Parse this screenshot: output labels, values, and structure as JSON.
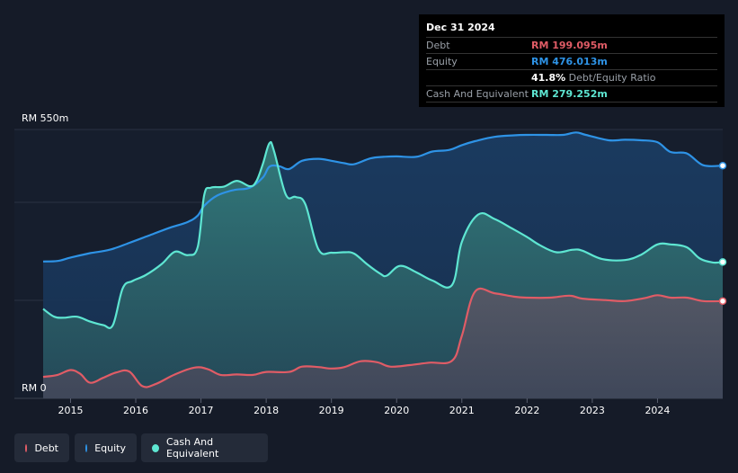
{
  "tooltip": {
    "date": "Dec 31 2024",
    "debt_label": "Debt",
    "debt_value": "RM 199.095m",
    "equity_label": "Equity",
    "equity_value": "RM 476.013m",
    "ratio_value": "41.8%",
    "ratio_label": "Debt/Equity Ratio",
    "cash_label": "Cash And Equivalent",
    "cash_value": "RM 279.252m"
  },
  "legend": {
    "debt": "Debt",
    "equity": "Equity",
    "cash": "Cash And Equivalent"
  },
  "colors": {
    "debt": "#e05c66",
    "equity": "#2e93e6",
    "cash": "#5ee6d2",
    "background": "#151b28"
  },
  "chart_data": {
    "type": "area",
    "ylabel_top": "RM 550m",
    "ylabel_bottom": "RM 0",
    "ylim": [
      0,
      550
    ],
    "xlim": [
      2014.58,
      2025.0
    ],
    "x_ticks": [
      {
        "value": 2015,
        "label": "2015"
      },
      {
        "value": 2016,
        "label": "2016"
      },
      {
        "value": 2017,
        "label": "2017"
      },
      {
        "value": 2018,
        "label": "2018"
      },
      {
        "value": 2019,
        "label": "2019"
      },
      {
        "value": 2020,
        "label": "2020"
      },
      {
        "value": 2021,
        "label": "2021"
      },
      {
        "value": 2022,
        "label": "2022"
      },
      {
        "value": 2023,
        "label": "2023"
      },
      {
        "value": 2024,
        "label": "2024"
      }
    ],
    "series": [
      {
        "name": "Equity",
        "points": [
          [
            2014.58,
            280
          ],
          [
            2014.8,
            281
          ],
          [
            2015.0,
            288
          ],
          [
            2015.3,
            297
          ],
          [
            2015.6,
            304
          ],
          [
            2015.9,
            318
          ],
          [
            2016.2,
            333
          ],
          [
            2016.5,
            348
          ],
          [
            2016.8,
            361
          ],
          [
            2016.95,
            374
          ],
          [
            2017.05,
            394
          ],
          [
            2017.25,
            415
          ],
          [
            2017.5,
            426
          ],
          [
            2017.75,
            431
          ],
          [
            2017.95,
            452
          ],
          [
            2018.05,
            474
          ],
          [
            2018.2,
            475
          ],
          [
            2018.35,
            469
          ],
          [
            2018.55,
            486
          ],
          [
            2018.8,
            490
          ],
          [
            2019.0,
            486
          ],
          [
            2019.2,
            481
          ],
          [
            2019.35,
            479
          ],
          [
            2019.6,
            491
          ],
          [
            2019.8,
            494
          ],
          [
            2020.0,
            495
          ],
          [
            2020.3,
            494
          ],
          [
            2020.55,
            505
          ],
          [
            2020.8,
            508
          ],
          [
            2021.0,
            518
          ],
          [
            2021.2,
            526
          ],
          [
            2021.5,
            535
          ],
          [
            2021.8,
            538
          ],
          [
            2022.0,
            539
          ],
          [
            2022.3,
            539
          ],
          [
            2022.55,
            539
          ],
          [
            2022.75,
            544
          ],
          [
            2022.9,
            539
          ],
          [
            2023.25,
            528
          ],
          [
            2023.5,
            529
          ],
          [
            2023.75,
            528
          ],
          [
            2024.0,
            524
          ],
          [
            2024.2,
            504
          ],
          [
            2024.45,
            501
          ],
          [
            2024.7,
            477
          ],
          [
            2025.0,
            476
          ]
        ]
      },
      {
        "name": "Cash And Equivalent",
        "points": [
          [
            2014.58,
            183
          ],
          [
            2014.75,
            167
          ],
          [
            2014.9,
            165
          ],
          [
            2015.1,
            167
          ],
          [
            2015.3,
            157
          ],
          [
            2015.5,
            150
          ],
          [
            2015.65,
            150
          ],
          [
            2015.8,
            225
          ],
          [
            2015.95,
            240
          ],
          [
            2016.15,
            252
          ],
          [
            2016.4,
            275
          ],
          [
            2016.6,
            300
          ],
          [
            2016.8,
            293
          ],
          [
            2016.95,
            310
          ],
          [
            2017.05,
            416
          ],
          [
            2017.15,
            431
          ],
          [
            2017.35,
            433
          ],
          [
            2017.55,
            445
          ],
          [
            2017.75,
            434
          ],
          [
            2017.85,
            444
          ],
          [
            2017.95,
            480
          ],
          [
            2018.05,
            522
          ],
          [
            2018.12,
            506
          ],
          [
            2018.3,
            417
          ],
          [
            2018.45,
            412
          ],
          [
            2018.6,
            397
          ],
          [
            2018.8,
            305
          ],
          [
            2019.0,
            298
          ],
          [
            2019.2,
            299
          ],
          [
            2019.35,
            296
          ],
          [
            2019.55,
            274
          ],
          [
            2019.75,
            255
          ],
          [
            2019.85,
            251
          ],
          [
            2020.05,
            271
          ],
          [
            2020.3,
            258
          ],
          [
            2020.55,
            241
          ],
          [
            2020.85,
            232
          ],
          [
            2021.0,
            320
          ],
          [
            2021.25,
            376
          ],
          [
            2021.5,
            367
          ],
          [
            2021.75,
            349
          ],
          [
            2022.0,
            330
          ],
          [
            2022.2,
            313
          ],
          [
            2022.45,
            299
          ],
          [
            2022.7,
            304
          ],
          [
            2022.85,
            302
          ],
          [
            2023.15,
            285
          ],
          [
            2023.5,
            283
          ],
          [
            2023.75,
            294
          ],
          [
            2024.0,
            315
          ],
          [
            2024.2,
            315
          ],
          [
            2024.45,
            309
          ],
          [
            2024.65,
            286
          ],
          [
            2024.85,
            278
          ],
          [
            2025.0,
            279
          ]
        ]
      },
      {
        "name": "Debt",
        "points": [
          [
            2014.58,
            44
          ],
          [
            2014.8,
            48
          ],
          [
            2015.0,
            58
          ],
          [
            2015.15,
            50
          ],
          [
            2015.3,
            32
          ],
          [
            2015.5,
            42
          ],
          [
            2015.7,
            53
          ],
          [
            2015.9,
            55
          ],
          [
            2016.1,
            25
          ],
          [
            2016.3,
            29
          ],
          [
            2016.6,
            49
          ],
          [
            2016.9,
            63
          ],
          [
            2017.1,
            60
          ],
          [
            2017.3,
            48
          ],
          [
            2017.55,
            49
          ],
          [
            2017.8,
            48
          ],
          [
            2018.0,
            54
          ],
          [
            2018.35,
            54
          ],
          [
            2018.55,
            65
          ],
          [
            2018.8,
            64
          ],
          [
            2019.0,
            61
          ],
          [
            2019.2,
            64
          ],
          [
            2019.45,
            76
          ],
          [
            2019.7,
            74
          ],
          [
            2019.9,
            65
          ],
          [
            2020.2,
            68
          ],
          [
            2020.5,
            73
          ],
          [
            2020.85,
            77
          ],
          [
            2021.0,
            128
          ],
          [
            2021.2,
            218
          ],
          [
            2021.5,
            215
          ],
          [
            2021.8,
            208
          ],
          [
            2022.0,
            206
          ],
          [
            2022.35,
            206
          ],
          [
            2022.65,
            210
          ],
          [
            2022.85,
            204
          ],
          [
            2023.2,
            201
          ],
          [
            2023.5,
            199
          ],
          [
            2023.8,
            205
          ],
          [
            2024.0,
            211
          ],
          [
            2024.2,
            206
          ],
          [
            2024.45,
            206
          ],
          [
            2024.7,
            199
          ],
          [
            2025.0,
            199
          ]
        ]
      }
    ]
  }
}
